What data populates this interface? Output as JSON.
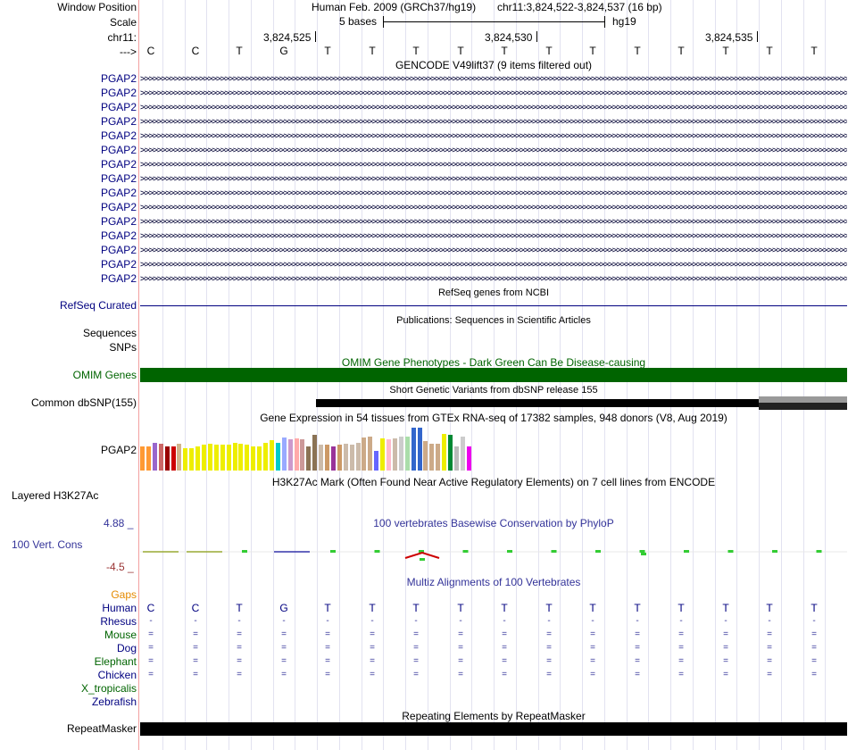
{
  "header": {
    "window_position_label": "Window Position",
    "scale_label": "Scale",
    "chrom_label": "chr11:",
    "strand_label": "--->",
    "assembly_title": "Human Feb. 2009 (GRCh37/hg19)",
    "position": "chr11:3,824,522-3,824,537 (16 bp)",
    "scale_text": "5 bases",
    "db": "hg19",
    "ruler_ticks": [
      "3,824,525",
      "3,824,530",
      "3,824,535"
    ]
  },
  "bases": [
    "C",
    "C",
    "T",
    "G",
    "T",
    "T",
    "T",
    "T",
    "T",
    "T",
    "T",
    "T",
    "T",
    "T",
    "T",
    "T"
  ],
  "gencode": {
    "title": "GENCODE V49lift37 (9 items filtered out)",
    "gene_labels": [
      "PGAP2",
      "PGAP2",
      "PGAP2",
      "PGAP2",
      "PGAP2",
      "PGAP2",
      "PGAP2",
      "PGAP2",
      "PGAP2",
      "PGAP2",
      "PGAP2",
      "PGAP2",
      "PGAP2",
      "PGAP2",
      "PGAP2"
    ]
  },
  "refseq": {
    "title": "RefSeq genes from NCBI",
    "label": "RefSeq Curated"
  },
  "publications": {
    "title": "Publications: Sequences in Scientific Articles",
    "labels": [
      "Sequences",
      "SNPs"
    ]
  },
  "omim": {
    "title": "OMIM Gene Phenotypes - Dark Green Can Be Disease-causing",
    "label": "OMIM Genes",
    "color": "#006400"
  },
  "dbsnp": {
    "title": "Short Genetic Variants from dbSNP release 155",
    "label": "Common dbSNP(155)"
  },
  "gtex": {
    "title": "Gene Expression in 54 tissues from GTEx RNA-seq of 17382 samples, 948 donors (V8, Aug 2019)",
    "label": "PGAP2",
    "bars": [
      {
        "v": 0.56,
        "c": "#ff9933"
      },
      {
        "v": 0.56,
        "c": "#ff9933"
      },
      {
        "v": 0.65,
        "c": "#9966cc"
      },
      {
        "v": 0.62,
        "c": "#cc6666"
      },
      {
        "v": 0.56,
        "c": "#990000"
      },
      {
        "v": 0.56,
        "c": "#cc0000"
      },
      {
        "v": 0.62,
        "c": "#d2b48c"
      },
      {
        "v": 0.52,
        "c": "#eeee00"
      },
      {
        "v": 0.52,
        "c": "#eeee00"
      },
      {
        "v": 0.56,
        "c": "#eeee00"
      },
      {
        "v": 0.6,
        "c": "#eeee00"
      },
      {
        "v": 0.63,
        "c": "#eeee00"
      },
      {
        "v": 0.6,
        "c": "#eeee00"
      },
      {
        "v": 0.6,
        "c": "#eeee00"
      },
      {
        "v": 0.6,
        "c": "#eeee00"
      },
      {
        "v": 0.65,
        "c": "#eeee00"
      },
      {
        "v": 0.63,
        "c": "#eeee00"
      },
      {
        "v": 0.6,
        "c": "#eeee00"
      },
      {
        "v": 0.56,
        "c": "#eeee00"
      },
      {
        "v": 0.56,
        "c": "#eeee00"
      },
      {
        "v": 0.65,
        "c": "#eeee00"
      },
      {
        "v": 0.7,
        "c": "#eeee00"
      },
      {
        "v": 0.65,
        "c": "#00cccc"
      },
      {
        "v": 0.77,
        "c": "#99aaff"
      },
      {
        "v": 0.73,
        "c": "#cc99cc"
      },
      {
        "v": 0.75,
        "c": "#ffaaaa"
      },
      {
        "v": 0.73,
        "c": "#cc9999"
      },
      {
        "v": 0.56,
        "c": "#8b7355"
      },
      {
        "v": 0.83,
        "c": "#8b7355"
      },
      {
        "v": 0.6,
        "c": "#ccbbaa"
      },
      {
        "v": 0.6,
        "c": "#cc9966"
      },
      {
        "v": 0.56,
        "c": "#993399"
      },
      {
        "v": 0.6,
        "c": "#cc9966"
      },
      {
        "v": 0.63,
        "c": "#ccbbaa"
      },
      {
        "v": 0.6,
        "c": "#ccbbaa"
      },
      {
        "v": 0.65,
        "c": "#ccbbaa"
      },
      {
        "v": 0.77,
        "c": "#ccaa88"
      },
      {
        "v": 0.79,
        "c": "#ccaa88"
      },
      {
        "v": 0.46,
        "c": "#6666ff"
      },
      {
        "v": 0.75,
        "c": "#eeee00"
      },
      {
        "v": 0.73,
        "c": "#ffbbcc"
      },
      {
        "v": 0.75,
        "c": "#ccbbaa"
      },
      {
        "v": 0.79,
        "c": "#cccccc"
      },
      {
        "v": 0.79,
        "c": "#aaddaa"
      },
      {
        "v": 1.0,
        "c": "#3366cc"
      },
      {
        "v": 1.0,
        "c": "#3366cc"
      },
      {
        "v": 0.68,
        "c": "#ccaa88"
      },
      {
        "v": 0.63,
        "c": "#ccaa88"
      },
      {
        "v": 0.63,
        "c": "#ccaa88"
      },
      {
        "v": 0.85,
        "c": "#eeee00"
      },
      {
        "v": 0.83,
        "c": "#008833"
      },
      {
        "v": 0.56,
        "c": "#bbbbbb"
      },
      {
        "v": 0.79,
        "c": "#cccccc"
      },
      {
        "v": 0.56,
        "c": "#ee00ee"
      }
    ]
  },
  "h3k27ac": {
    "title": "H3K27Ac Mark (Often Found Near Active Regulatory Elements) on 7 cell lines from ENCODE",
    "label": "Layered H3K27Ac"
  },
  "phylop": {
    "title": "100 vertebrates Basewise Conservation by PhyloP",
    "label": "100 Vert. Cons",
    "max": "4.88 _",
    "min": "-4.5 _"
  },
  "multiz": {
    "title": "Multiz Alignments of 100 Vertebrates",
    "gaps_label": "Gaps",
    "species": [
      "Human",
      "Rhesus",
      "Mouse",
      "Dog",
      "Elephant",
      "Chicken",
      "X_tropicalis",
      "Zebrafish"
    ],
    "rows": [
      [
        "C",
        "C",
        "T",
        "G",
        "T",
        "T",
        "T",
        "T",
        "T",
        "T",
        "T",
        "T",
        "T",
        "T",
        "T",
        "T"
      ],
      [
        "-",
        "-",
        "-",
        "-",
        "-",
        "-",
        "-",
        "-",
        "-",
        "-",
        "-",
        "-",
        "-",
        "-",
        "-",
        "-"
      ],
      [
        "=",
        "=",
        "=",
        "=",
        "=",
        "=",
        "=",
        "=",
        "=",
        "=",
        "=",
        "=",
        "=",
        "=",
        "=",
        "="
      ],
      [
        "=",
        "=",
        "=",
        "=",
        "=",
        "=",
        "=",
        "=",
        "=",
        "=",
        "=",
        "=",
        "=",
        "=",
        "=",
        "="
      ],
      [
        "=",
        "=",
        "=",
        "=",
        "=",
        "=",
        "=",
        "=",
        "=",
        "=",
        "=",
        "=",
        "=",
        "=",
        "=",
        "="
      ],
      [
        "=",
        "=",
        "=",
        "=",
        "=",
        "=",
        "=",
        "=",
        "=",
        "=",
        "=",
        "=",
        "=",
        "=",
        "=",
        "="
      ],
      [],
      []
    ]
  },
  "repeatmasker": {
    "title": "Repeating Elements by RepeatMasker",
    "label": "RepeatMasker"
  },
  "colors": {
    "gene_blue": "#000080",
    "omim_green": "#006400",
    "phylop_blue": "#333399",
    "phylop_red": "#993333",
    "gaps_orange": "#e58a00",
    "species_green": "#006400"
  }
}
